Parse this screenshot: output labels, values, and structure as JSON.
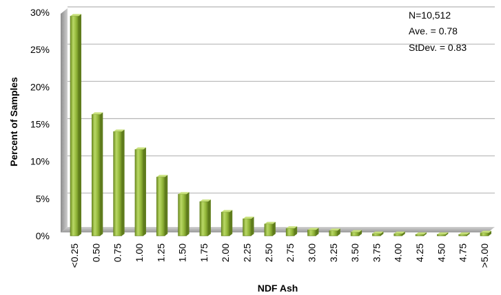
{
  "chart_data": {
    "type": "bar",
    "title": "",
    "xlabel": "NDF Ash",
    "ylabel": "Percent of Samples",
    "categories": [
      "<0.25",
      "0.50",
      "0.75",
      "1.00",
      "1.25",
      "1.50",
      "1.75",
      "2.00",
      "2.25",
      "2.50",
      "2.75",
      "3.00",
      "3.25",
      "3.50",
      "3.75",
      "4.00",
      "4.25",
      "4.50",
      "4.75",
      ">5.00"
    ],
    "values": [
      29.5,
      16.3,
      14.0,
      11.6,
      7.9,
      5.6,
      4.6,
      3.2,
      2.3,
      1.6,
      1.0,
      0.8,
      0.7,
      0.5,
      0.3,
      0.3,
      0.2,
      0.2,
      0.2,
      0.4
    ],
    "ylim": [
      0,
      30
    ],
    "yticks": [
      "0%",
      "5%",
      "10%",
      "15%",
      "20%",
      "25%",
      "30%"
    ],
    "ytick_values": [
      0,
      5,
      10,
      15,
      20,
      25,
      30
    ],
    "grid": true,
    "legend": "none",
    "bar_color": "#8fb33a",
    "bar_highlight": "#c7e07a",
    "annotations": [
      "N=10,512",
      "Ave. = 0.78",
      "StDev. = 0.83"
    ]
  }
}
